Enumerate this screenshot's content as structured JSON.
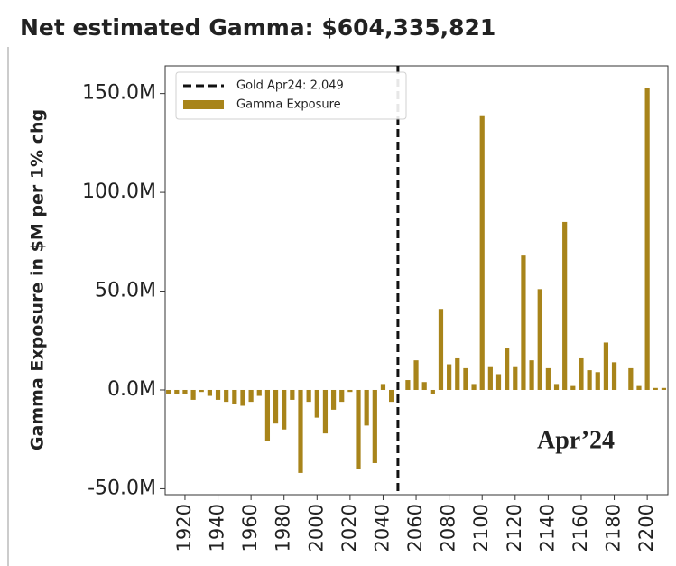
{
  "chart_data": {
    "type": "bar",
    "title": "Net estimated Gamma: $604,335,821",
    "ylabel": "Gamma Exposure in $M per 1% chg",
    "annotation": "Apr’24",
    "x": [
      1910,
      1915,
      1920,
      1925,
      1930,
      1935,
      1940,
      1945,
      1950,
      1955,
      1960,
      1965,
      1970,
      1975,
      1980,
      1985,
      1990,
      1995,
      2000,
      2005,
      2010,
      2015,
      2020,
      2025,
      2030,
      2035,
      2040,
      2045,
      2055,
      2060,
      2065,
      2070,
      2075,
      2080,
      2085,
      2090,
      2095,
      2100,
      2105,
      2110,
      2115,
      2120,
      2125,
      2130,
      2135,
      2140,
      2145,
      2150,
      2155,
      2160,
      2165,
      2170,
      2175,
      2180,
      2190,
      2195,
      2200,
      2205,
      2210
    ],
    "series": [
      {
        "name": "Gamma Exposure",
        "color": "#a8841a",
        "values": [
          -2,
          -2,
          -2,
          -5,
          -1,
          -3,
          -5,
          -6,
          -7,
          -8,
          -6,
          -3,
          -26,
          -17,
          -20,
          -5,
          -42,
          -6,
          -14,
          -22,
          -10,
          -6,
          -1,
          -40,
          -18,
          -37,
          3,
          -6,
          5,
          15,
          4,
          -2,
          41,
          13,
          16,
          11,
          3,
          139,
          12,
          8,
          21,
          12,
          68,
          15,
          51,
          11,
          3,
          85,
          2,
          16,
          10,
          9,
          24,
          14,
          11,
          2,
          153,
          1,
          1
        ]
      }
    ],
    "vline": {
      "x": 2049,
      "label": "Gold Apr24: 2,049"
    },
    "xlim": [
      1908,
      2212.5
    ],
    "xticks": [
      1920,
      1940,
      1960,
      1980,
      2000,
      2020,
      2040,
      2060,
      2080,
      2100,
      2120,
      2140,
      2160,
      2180,
      2200
    ],
    "ylim": [
      -53,
      164
    ],
    "yticks": [
      {
        "value": -50,
        "label": "-50.0M"
      },
      {
        "value": 0,
        "label": "0.0M"
      },
      {
        "value": 50,
        "label": "50.0M"
      },
      {
        "value": 100,
        "label": "100.0M"
      },
      {
        "value": 150,
        "label": "150.0M"
      }
    ],
    "legend": "upper left"
  }
}
